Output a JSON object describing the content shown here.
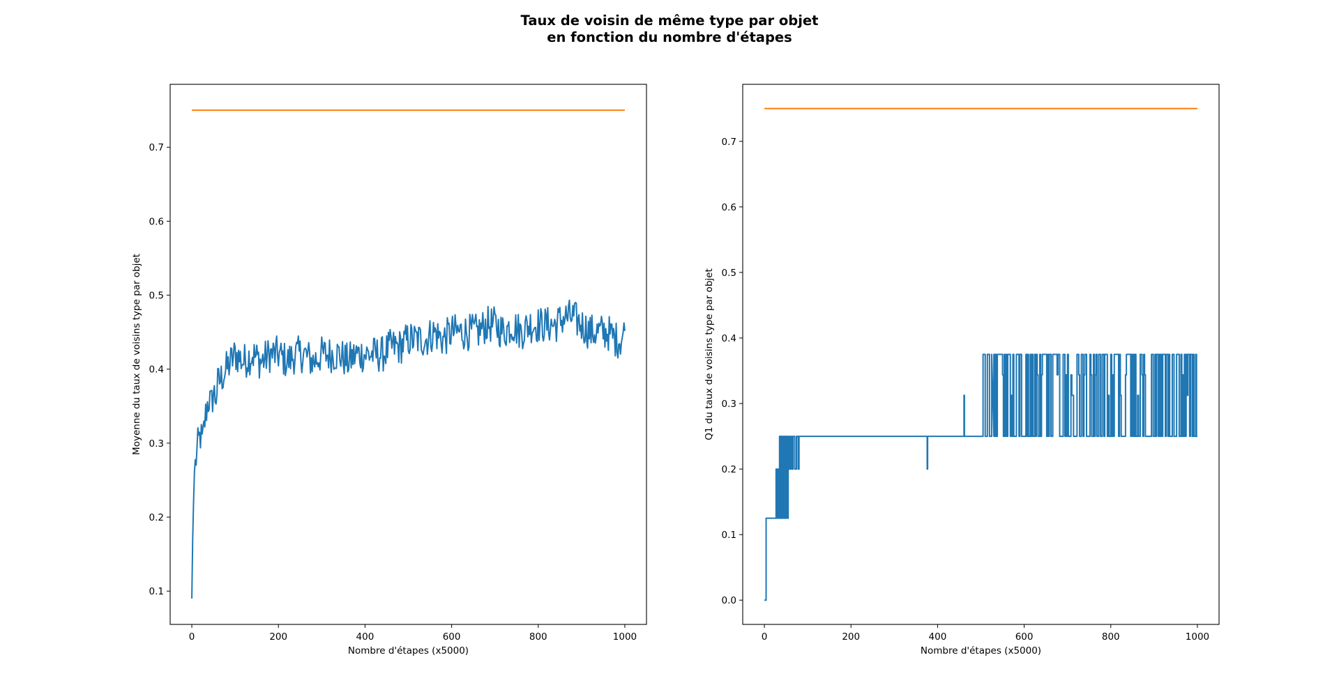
{
  "figure": {
    "title_line1": "Taux de voisin de même type par objet",
    "title_line2": "en fonction du nombre d'étapes"
  },
  "colors": {
    "series": "#1f77b4",
    "threshold": "#ff7f0e"
  },
  "chart_data": [
    {
      "type": "line",
      "title": "",
      "xlabel": "Nombre d'étapes (x5000)",
      "ylabel": "Moyenne du taux de voisins type par objet",
      "xlim": [
        -50,
        1050
      ],
      "ylim": [
        0.055,
        0.785
      ],
      "x_ticks": [
        0,
        200,
        400,
        600,
        800,
        1000
      ],
      "x_tick_labels": [
        "0",
        "200",
        "400",
        "600",
        "800",
        "1000"
      ],
      "y_ticks": [
        0.1,
        0.2,
        0.3,
        0.4,
        0.5,
        0.6,
        0.7
      ],
      "y_tick_labels": [
        "0.1",
        "0.2",
        "0.3",
        "0.4",
        "0.5",
        "0.6",
        "0.7"
      ],
      "grid": false,
      "legend": "none",
      "series": [
        {
          "x": [
            0,
            2,
            4,
            6,
            8,
            10,
            15,
            20,
            25,
            30,
            35,
            40,
            45,
            50,
            55,
            60,
            70,
            80,
            90,
            100,
            120,
            140,
            160,
            180,
            200,
            220,
            240,
            260,
            280,
            300,
            320,
            340,
            360,
            380,
            400,
            420,
            440,
            460,
            480,
            500,
            520,
            540,
            560,
            580,
            600,
            620,
            640,
            660,
            680,
            700,
            720,
            740,
            760,
            780,
            800,
            820,
            840,
            860,
            880,
            900,
            920,
            940,
            960,
            980,
            990,
            1000
          ],
          "y": [
            0.09,
            0.17,
            0.22,
            0.26,
            0.27,
            0.28,
            0.3,
            0.31,
            0.3,
            0.33,
            0.35,
            0.36,
            0.35,
            0.37,
            0.36,
            0.38,
            0.39,
            0.4,
            0.41,
            0.42,
            0.41,
            0.42,
            0.41,
            0.42,
            0.42,
            0.41,
            0.42,
            0.42,
            0.41,
            0.42,
            0.42,
            0.42,
            0.41,
            0.42,
            0.42,
            0.42,
            0.42,
            0.43,
            0.43,
            0.44,
            0.44,
            0.44,
            0.45,
            0.44,
            0.45,
            0.45,
            0.45,
            0.45,
            0.46,
            0.46,
            0.45,
            0.46,
            0.45,
            0.46,
            0.46,
            0.46,
            0.46,
            0.47,
            0.47,
            0.46,
            0.45,
            0.45,
            0.45,
            0.44,
            0.44,
            0.45
          ],
          "noise_amplitude": 0.025
        },
        {
          "x": [
            0,
            1000
          ],
          "y": [
            0.75,
            0.75
          ]
        }
      ]
    },
    {
      "type": "line",
      "title": "",
      "xlabel": "Nombre d'étapes (x5000)",
      "ylabel": "Q1 du taux de voisins type par objet",
      "xlim": [
        -50,
        1050
      ],
      "ylim": [
        -0.037,
        0.787
      ],
      "x_ticks": [
        0,
        200,
        400,
        600,
        800,
        1000
      ],
      "x_tick_labels": [
        "0",
        "200",
        "400",
        "600",
        "800",
        "1000"
      ],
      "y_ticks": [
        0.0,
        0.1,
        0.2,
        0.3,
        0.4,
        0.5,
        0.6,
        0.7
      ],
      "y_tick_labels": [
        "0.0",
        "0.1",
        "0.2",
        "0.3",
        "0.4",
        "0.5",
        "0.6",
        "0.7"
      ],
      "grid": false,
      "legend": "none",
      "series": [
        {
          "x": [
            0,
            2,
            4,
            25,
            27,
            29,
            31,
            33,
            35,
            37,
            39,
            41,
            43,
            45,
            47,
            49,
            51,
            53,
            55,
            57,
            60,
            63,
            66,
            70,
            74,
            78,
            80,
            200,
            375,
            376,
            377,
            378,
            460,
            461,
            462,
            463,
            500,
            505,
            510,
            515,
            520,
            525,
            530,
            1000
          ],
          "y": [
            0.0,
            0.0,
            0.125,
            0.125,
            0.2,
            0.125,
            0.2,
            0.125,
            0.25,
            0.125,
            0.25,
            0.125,
            0.25,
            0.125,
            0.25,
            0.125,
            0.25,
            0.125,
            0.25,
            0.2,
            0.25,
            0.2,
            0.25,
            0.2,
            0.25,
            0.2,
            0.25,
            0.25,
            0.25,
            0.2,
            0.25,
            0.25,
            0.25,
            0.3125,
            0.25,
            0.25,
            0.25,
            0.375,
            0.25,
            0.375,
            0.25,
            0.375,
            0.25,
            0.25
          ],
          "toggle_region": {
            "x_start": 530,
            "x_end": 1000,
            "low": 0.25,
            "high": 0.375,
            "mid_values": [
              0.3125,
              0.34375
            ]
          }
        },
        {
          "x": [
            0,
            1000
          ],
          "y": [
            0.75,
            0.75
          ]
        }
      ]
    }
  ]
}
